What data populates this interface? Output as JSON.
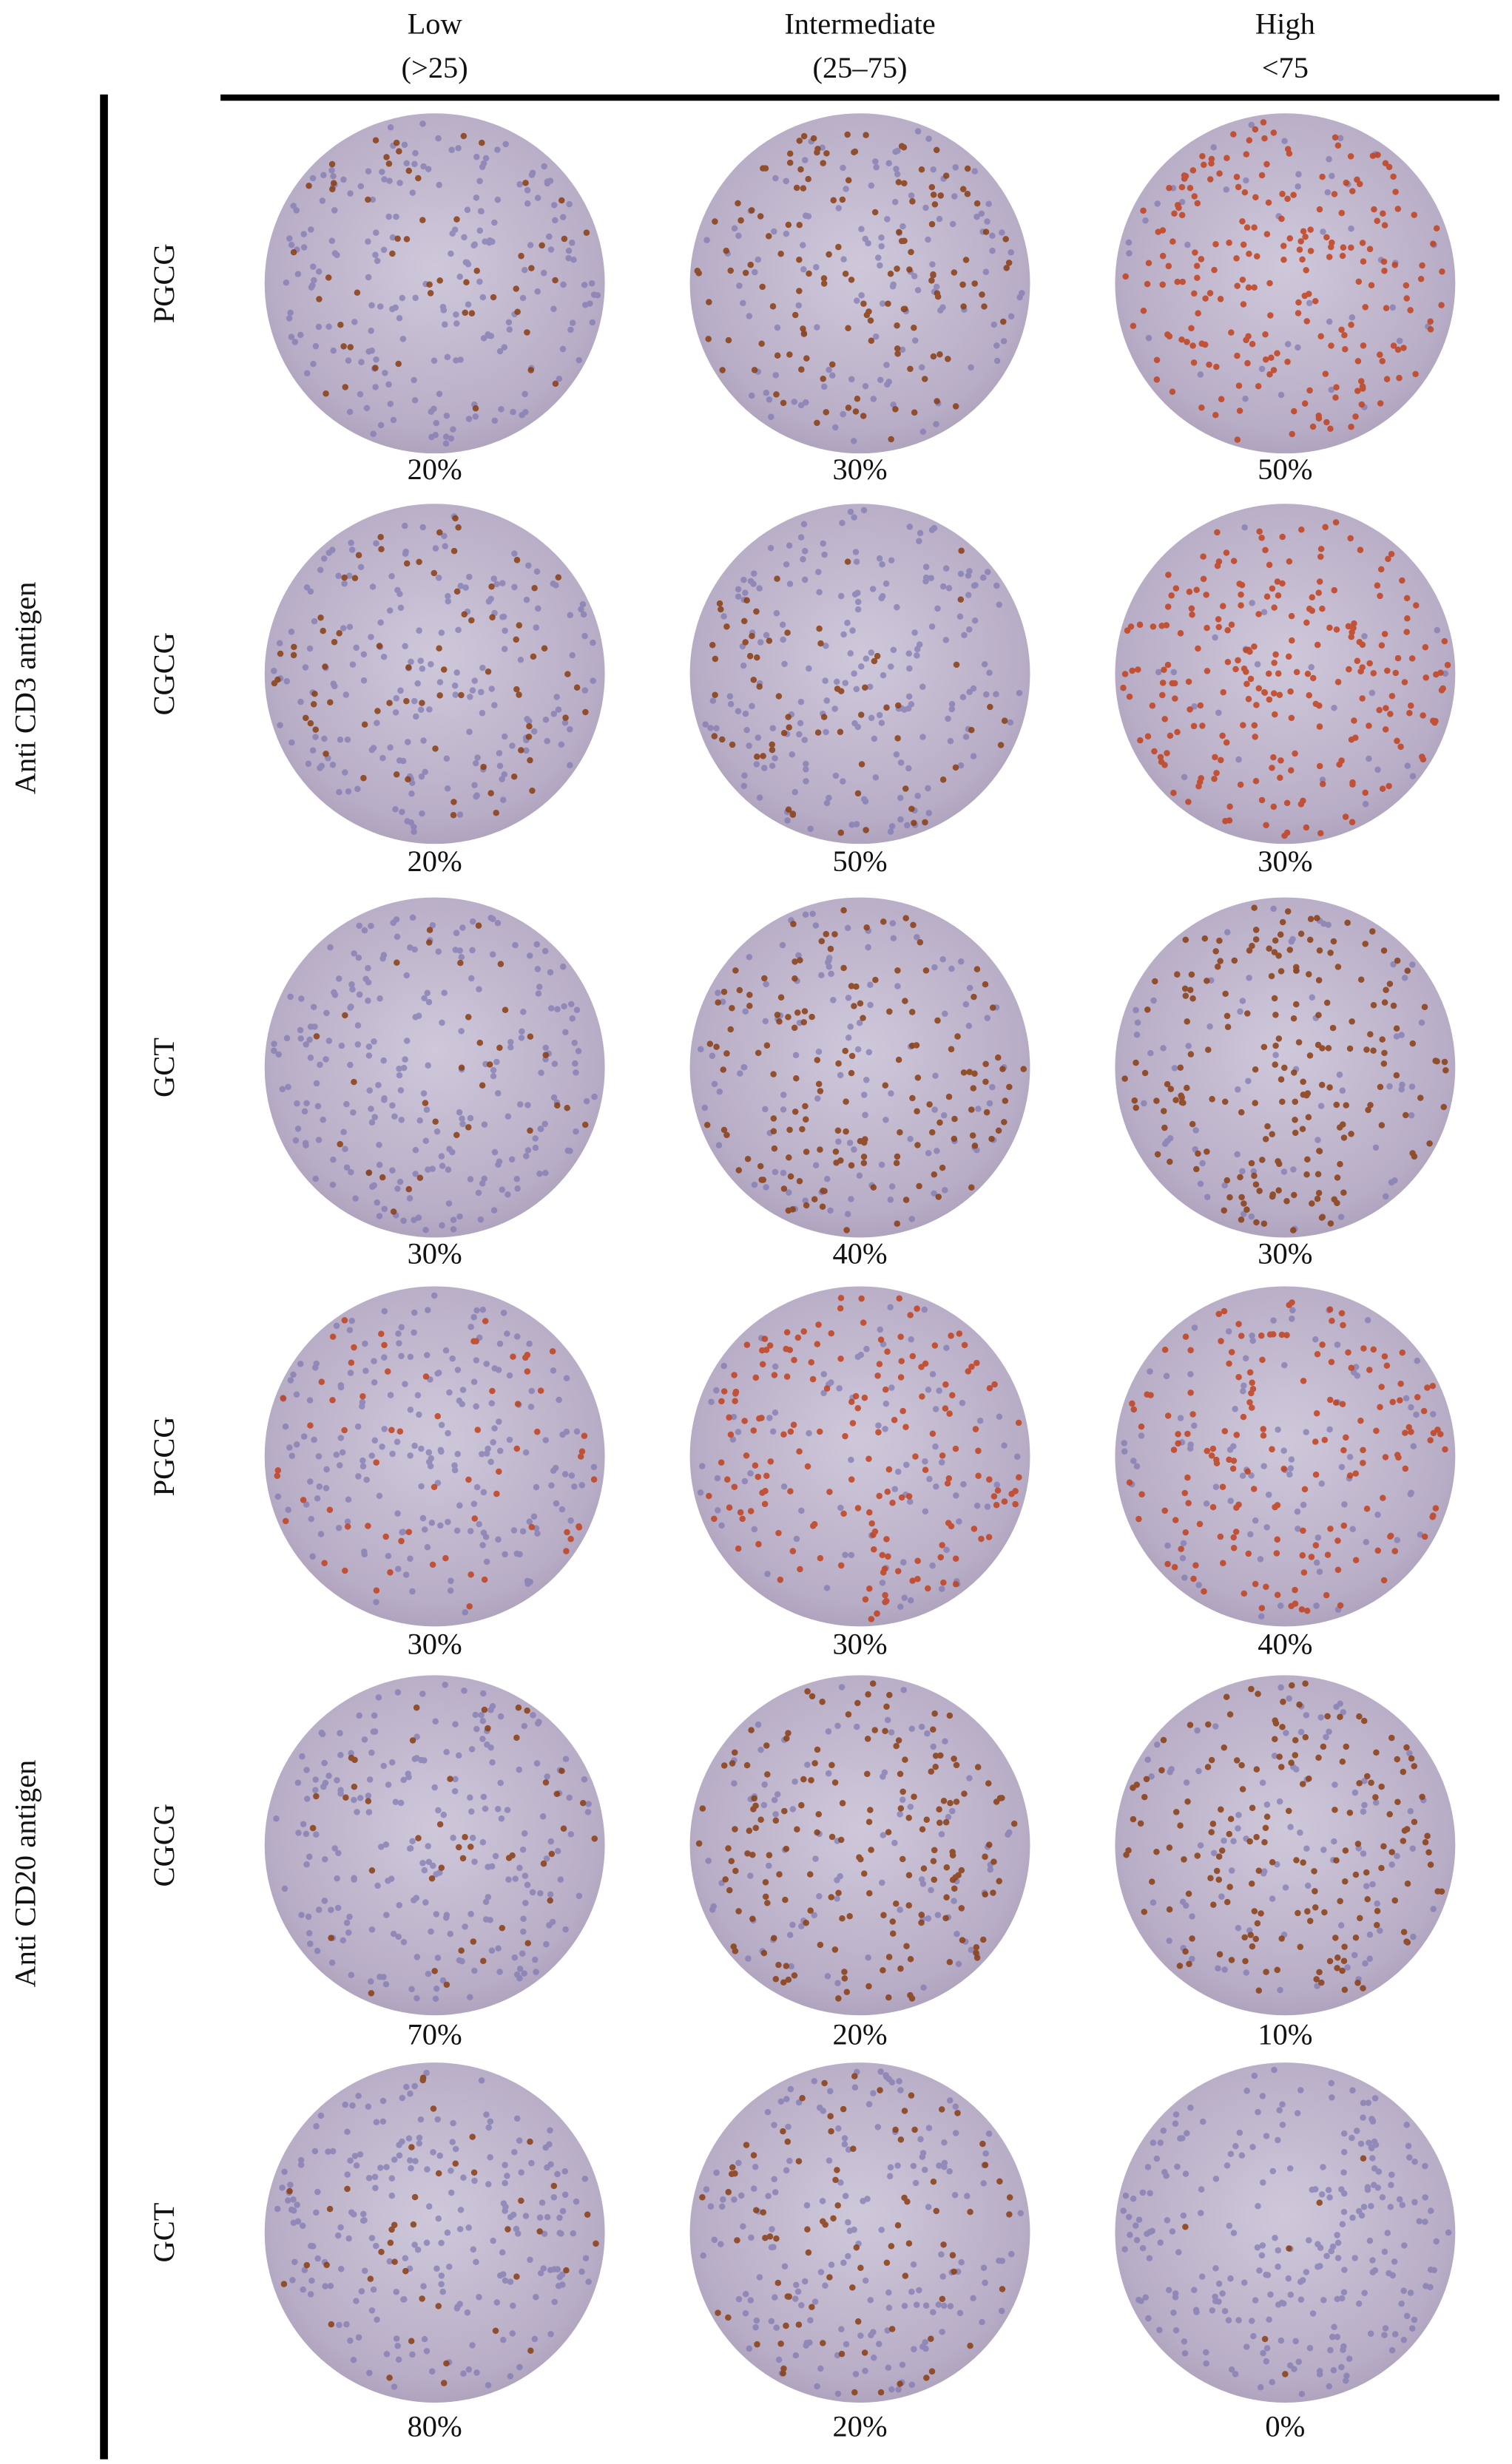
{
  "columns": [
    {
      "title": "Low",
      "range": "(>25)"
    },
    {
      "title": "Intermediate",
      "range": "(25–75)"
    },
    {
      "title": "High",
      "range": "<75"
    }
  ],
  "groups": [
    {
      "label": "Anti CD3 antigen",
      "rows": [
        {
          "label": "PGCG",
          "values": [
            "20%",
            "30%",
            "50%"
          ]
        },
        {
          "label": "CGCG",
          "values": [
            "20%",
            "50%",
            "30%"
          ]
        },
        {
          "label": "GCT",
          "values": [
            "30%",
            "40%",
            "30%"
          ]
        }
      ]
    },
    {
      "label": "Anti CD20 antigen",
      "rows": [
        {
          "label": "PGCG",
          "values": [
            "30%",
            "30%",
            "40%"
          ]
        },
        {
          "label": "CGCG",
          "values": [
            "70%",
            "20%",
            "10%"
          ]
        },
        {
          "label": "GCT",
          "values": [
            "80%",
            "20%",
            "0%"
          ]
        }
      ]
    }
  ]
}
